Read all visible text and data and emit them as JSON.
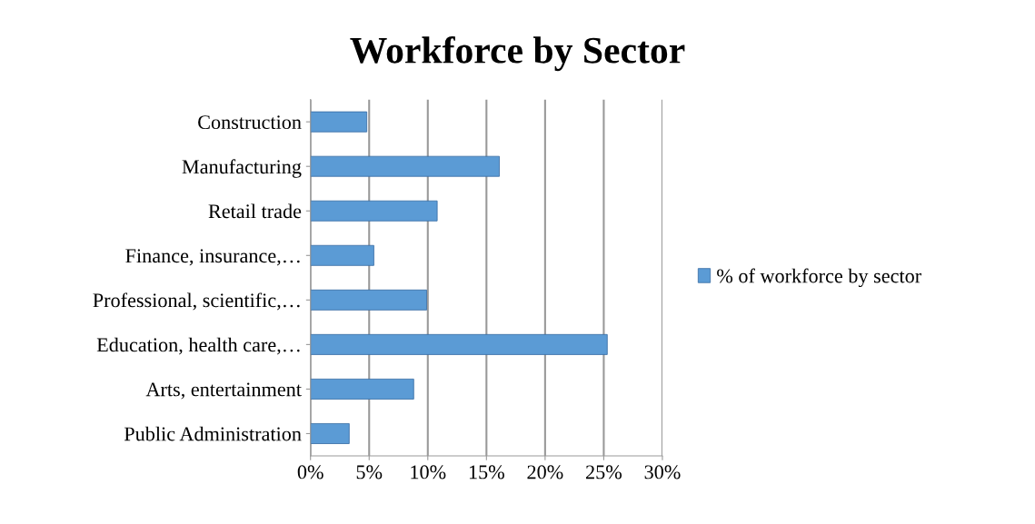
{
  "chart_data": {
    "type": "bar",
    "orientation": "horizontal",
    "title": "Workforce by Sector",
    "categories": [
      "Construction",
      "Manufacturing",
      "Retail trade",
      "Finance, insurance,…",
      "Professional, scientific,…",
      "Education, health care,…",
      "Arts, entertainment",
      "Public Administration"
    ],
    "series": [
      {
        "name": "% of workforce by sector",
        "color": "#5b9bd5",
        "values": [
          4.8,
          16.1,
          10.8,
          5.4,
          9.9,
          25.3,
          8.8,
          3.3
        ]
      }
    ],
    "xlim": [
      0,
      30
    ],
    "xticks": [
      {
        "value": 0,
        "label": "0%"
      },
      {
        "value": 5,
        "label": "5%"
      },
      {
        "value": 10,
        "label": "10%"
      },
      {
        "value": 15,
        "label": "15%"
      },
      {
        "value": 20,
        "label": "20%"
      },
      {
        "value": 25,
        "label": "25%"
      },
      {
        "value": 30,
        "label": "30%"
      }
    ],
    "grid": "x",
    "legend": "right"
  }
}
